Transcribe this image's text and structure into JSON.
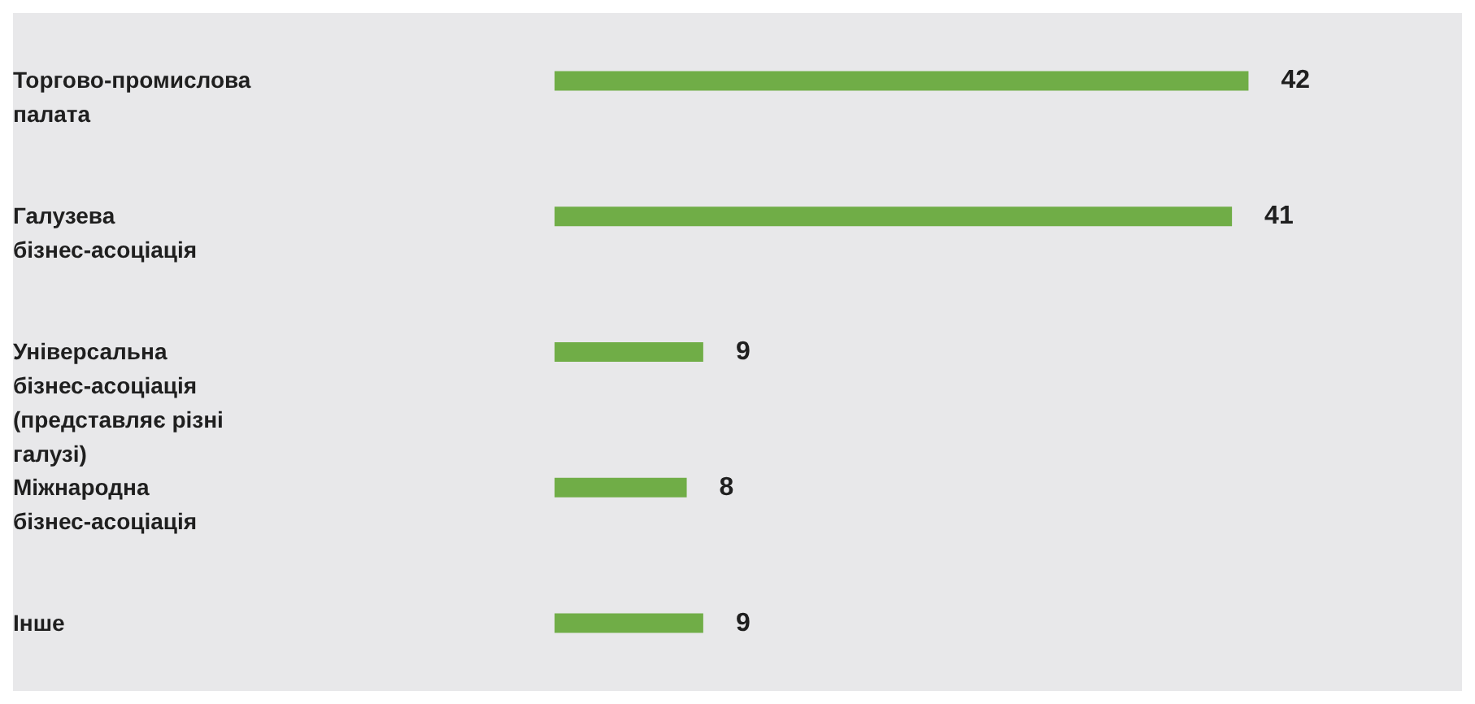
{
  "chart_data": {
    "type": "bar",
    "orientation": "horizontal",
    "categories": [
      "Торгово-промислова палата",
      "Галузева бізнес-асоціація",
      "Універсальна бізнес-асоціація (представляє різні галузі)",
      "Міжнародна бізнес-асоціація",
      "Інше"
    ],
    "values": [
      42,
      41,
      9,
      8,
      9
    ],
    "color": "#70ad47",
    "data_labels": true
  }
}
